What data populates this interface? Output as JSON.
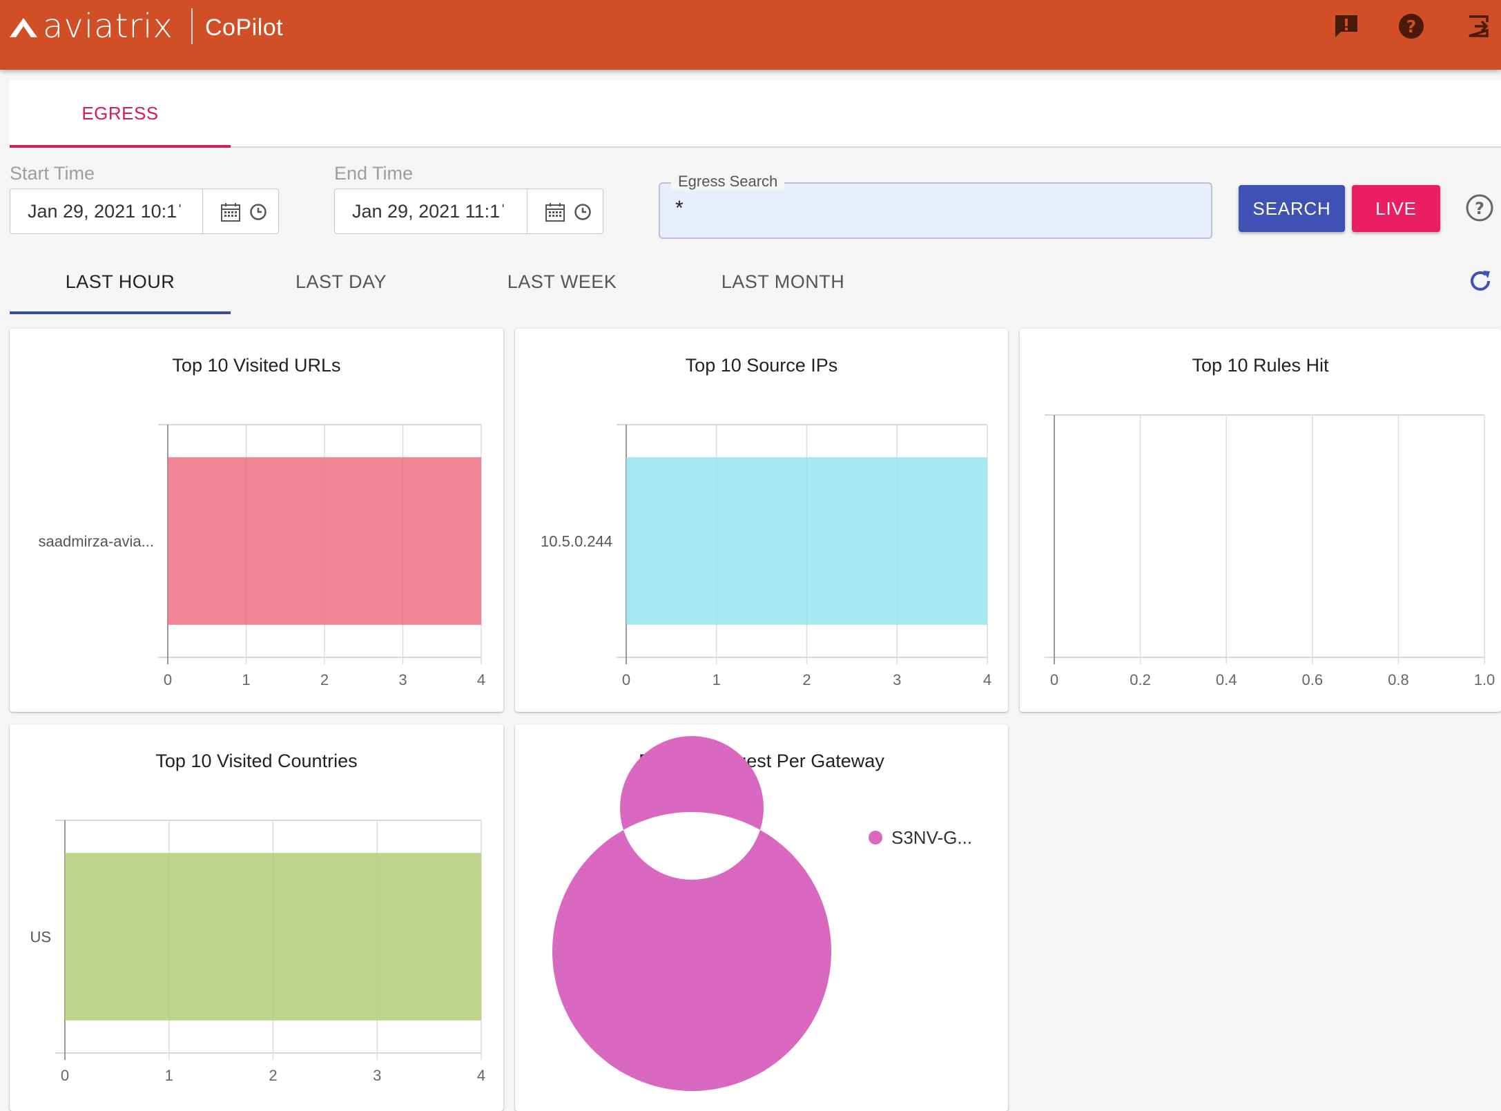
{
  "header": {
    "brand": "aviatrix",
    "product": "CoPilot",
    "icons": [
      "feedback-icon",
      "help-icon",
      "logout-icon"
    ],
    "color": "#d04f26"
  },
  "tabs": {
    "active": "EGRESS"
  },
  "filters": {
    "start_label": "Start Time",
    "start_value": "Jan 29, 2021 10:1ˈ",
    "end_label": "End Time",
    "end_value": "Jan 29, 2021 11:1ˈ",
    "search_label": "Egress Search",
    "search_value": "*",
    "search_button": "SEARCH",
    "live_button": "LIVE"
  },
  "ranges": [
    "LAST HOUR",
    "LAST DAY",
    "LAST WEEK",
    "LAST MONTH"
  ],
  "colors": {
    "accent": "#d81b60",
    "primary": "#3949ab",
    "urls": "#f07080",
    "ips": "#98e3f0",
    "countries": "#b5cb79",
    "gateway": "#d968c0"
  },
  "cards": {
    "urls": "Top 10 Visited URLs",
    "ips": "Top 10 Source IPs",
    "rules": "Top 10 Rules Hit",
    "countries": "Top 10 Visited Countries",
    "gateway": "Egress Request Per Gateway"
  },
  "chart_data": [
    {
      "type": "bar",
      "orientation": "horizontal",
      "title": "Top 10 Visited URLs",
      "categories": [
        "saadmirza-avia..."
      ],
      "values": [
        4
      ],
      "xlim": [
        0,
        4
      ],
      "xticks": [
        "0",
        "1",
        "2",
        "3",
        "4"
      ],
      "color": "#f07080"
    },
    {
      "type": "bar",
      "orientation": "horizontal",
      "title": "Top 10 Source IPs",
      "categories": [
        "10.5.0.244"
      ],
      "values": [
        4
      ],
      "xlim": [
        0,
        4
      ],
      "xticks": [
        "0",
        "1",
        "2",
        "3",
        "4"
      ],
      "color": "#98e3f0"
    },
    {
      "type": "bar",
      "orientation": "horizontal",
      "title": "Top 10 Rules Hit",
      "categories": [],
      "values": [],
      "xlim": [
        0,
        1
      ],
      "xticks": [
        "0",
        "0.2",
        "0.4",
        "0.6",
        "0.8",
        "1.0"
      ]
    },
    {
      "type": "bar",
      "orientation": "horizontal",
      "title": "Top 10 Visited Countries",
      "categories": [
        "US"
      ],
      "values": [
        4
      ],
      "xlim": [
        0,
        4
      ],
      "xticks": [
        "0",
        "1",
        "2",
        "3",
        "4"
      ],
      "color": "#b5cb79"
    },
    {
      "type": "pie",
      "title": "Egress Request Per Gateway",
      "donut": true,
      "labels": [
        "S3NV-G..."
      ],
      "values": [
        1
      ],
      "legend": "right",
      "color": "#d968c0"
    }
  ]
}
